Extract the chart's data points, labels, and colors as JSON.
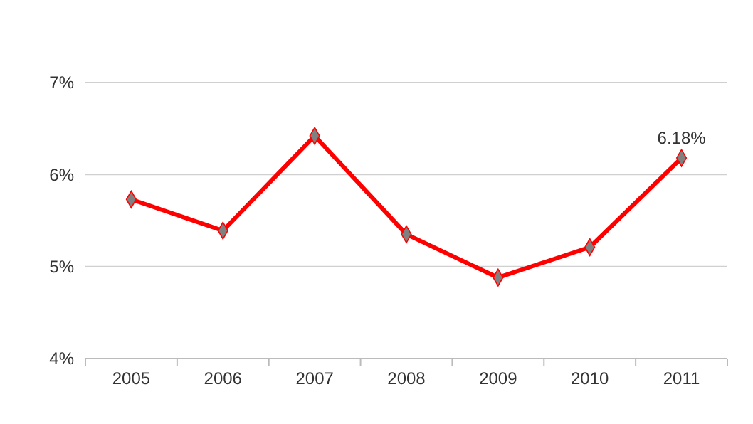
{
  "chart_data": {
    "type": "line",
    "categories": [
      "2005",
      "2006",
      "2007",
      "2008",
      "2009",
      "2010",
      "2011"
    ],
    "series": [
      {
        "color": "#ff0000",
        "values": [
          5.73,
          5.39,
          6.42,
          5.35,
          4.88,
          5.21,
          6.18
        ],
        "value_labels": [
          null,
          null,
          null,
          null,
          null,
          null,
          "6.18%"
        ]
      }
    ],
    "ylim": [
      4,
      7
    ],
    "yticks": [
      {
        "value": 4,
        "label": "4%"
      },
      {
        "value": 5,
        "label": "5%"
      },
      {
        "value": 6,
        "label": "6%"
      },
      {
        "value": 7,
        "label": "7%"
      }
    ],
    "grid": "y",
    "marker": "diamond",
    "line_style": "solid"
  }
}
